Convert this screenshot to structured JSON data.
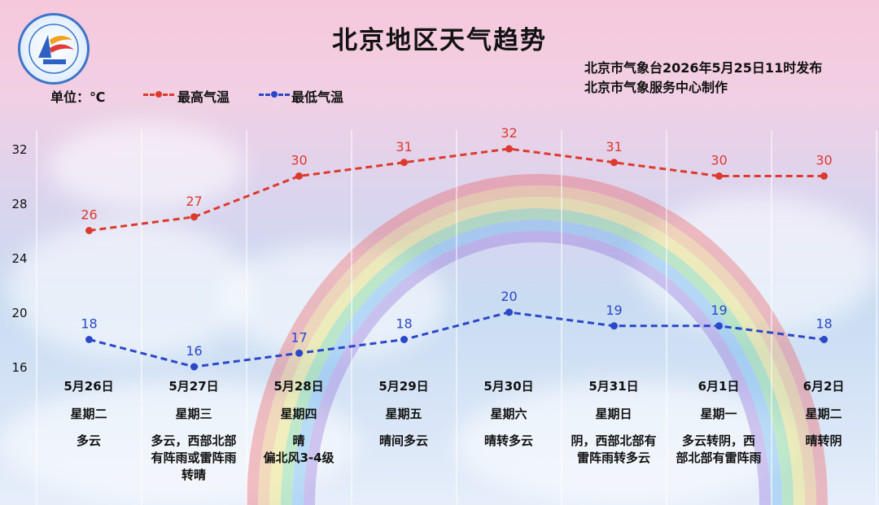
{
  "title": "北京地区天气趋势",
  "issuer_line1": "北京市气象台2026年5月25日11时发布",
  "issuer_line2": "北京市气象服务中心制作",
  "unit_label": "单位：℃",
  "legend": {
    "high_label": "最高气温",
    "low_label": "最低气温"
  },
  "colors": {
    "high": "#dc3a2c",
    "low": "#2a48c8",
    "grid": "#ffffff"
  },
  "logo": {
    "icon": "beijing-meteorological-service-logo"
  },
  "days": [
    {
      "date": "5月26日",
      "weekday": "星期二",
      "weather": [
        "多云"
      ]
    },
    {
      "date": "5月27日",
      "weekday": "星期三",
      "weather": [
        "多云，西部北部",
        "有阵雨或雷阵雨",
        "转晴"
      ]
    },
    {
      "date": "5月28日",
      "weekday": "星期四",
      "weather": [
        "晴",
        "偏北风3-4级"
      ]
    },
    {
      "date": "5月29日",
      "weekday": "星期五",
      "weather": [
        "晴间多云"
      ]
    },
    {
      "date": "5月30日",
      "weekday": "星期六",
      "weather": [
        "晴转多云"
      ]
    },
    {
      "date": "5月31日",
      "weekday": "星期日",
      "weather": [
        "阴，西部北部有",
        "雷阵雨转多云"
      ]
    },
    {
      "date": "6月1日",
      "weekday": "星期一",
      "weather": [
        "多云转阴，西",
        "部北部有雷阵雨"
      ]
    },
    {
      "date": "6月2日",
      "weekday": "星期二",
      "weather": [
        "晴转阴"
      ]
    }
  ],
  "chart_data": {
    "type": "line",
    "categories": [
      "5月26日",
      "5月27日",
      "5月28日",
      "5月29日",
      "5月30日",
      "5月31日",
      "6月1日",
      "6月2日"
    ],
    "series": [
      {
        "name": "最高气温",
        "values": [
          26,
          27,
          30,
          31,
          32,
          31,
          30,
          30
        ]
      },
      {
        "name": "最低气温",
        "values": [
          18,
          16,
          17,
          18,
          20,
          19,
          19,
          18
        ]
      }
    ],
    "yticks": [
      16,
      20,
      24,
      28,
      32
    ],
    "ylim": [
      16,
      32
    ],
    "ylabel": "单位：℃",
    "grid": "vertical column dividers",
    "legend_position": "top-left",
    "line_style": "dashed with dot markers"
  }
}
